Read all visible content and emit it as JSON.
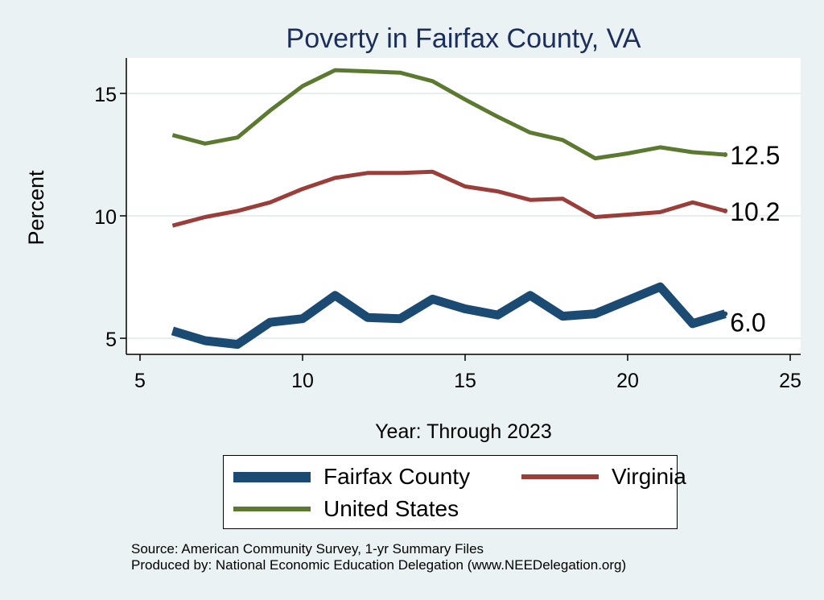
{
  "chart_data": {
    "type": "line",
    "title": "Poverty in Fairfax County, VA",
    "xlabel": "Year: Through 2023",
    "ylabel": "Percent",
    "xlim": [
      5,
      25
    ],
    "ylim": [
      4.2,
      16.5
    ],
    "x_ticks": [
      5,
      10,
      15,
      20,
      25
    ],
    "y_ticks": [
      5,
      10,
      15
    ],
    "x_tick_labels": [
      "5",
      "10",
      "15",
      "20",
      "25"
    ],
    "y_tick_labels": [
      "5",
      "10",
      "15"
    ],
    "grid": true,
    "legend_position": "bottom",
    "series": [
      {
        "name": "Fairfax County",
        "color": "#1b4a72",
        "line_weight": "thick",
        "x": [
          6,
          7,
          8,
          9,
          10,
          11,
          12,
          13,
          14,
          15,
          16,
          17,
          18,
          19,
          20,
          21,
          22,
          23
        ],
        "values": [
          5.3,
          4.9,
          4.75,
          5.65,
          5.8,
          6.75,
          5.85,
          5.8,
          6.6,
          6.2,
          5.95,
          6.75,
          5.9,
          6.0,
          6.55,
          7.1,
          5.6,
          6.0
        ],
        "end_label": "6.0"
      },
      {
        "name": "Virginia",
        "color": "#9b3e3a",
        "line_weight": "medium",
        "x": [
          6,
          7,
          8,
          9,
          10,
          11,
          12,
          13,
          14,
          15,
          16,
          17,
          18,
          19,
          20,
          21,
          22,
          23
        ],
        "values": [
          9.6,
          9.95,
          10.2,
          10.55,
          11.1,
          11.55,
          11.75,
          11.75,
          11.8,
          11.2,
          11.0,
          10.65,
          10.7,
          9.95,
          10.05,
          10.15,
          10.55,
          10.2
        ],
        "end_label": "10.2"
      },
      {
        "name": "United States",
        "color": "#5b7a30",
        "line_weight": "medium",
        "x": [
          6,
          7,
          8,
          9,
          10,
          11,
          12,
          13,
          14,
          15,
          16,
          17,
          18,
          19,
          20,
          21,
          22,
          23
        ],
        "values": [
          13.3,
          12.95,
          13.2,
          14.3,
          15.3,
          15.95,
          15.9,
          15.85,
          15.5,
          14.75,
          14.05,
          13.4,
          13.1,
          12.35,
          12.55,
          12.8,
          12.6,
          12.5
        ],
        "end_label": "12.5"
      }
    ]
  },
  "footer": {
    "source": "Source: American Community Survey, 1-yr Summary Files",
    "produced_by": "Produced by: National Economic Education Delegation (www.NEEDelegation.org)"
  }
}
